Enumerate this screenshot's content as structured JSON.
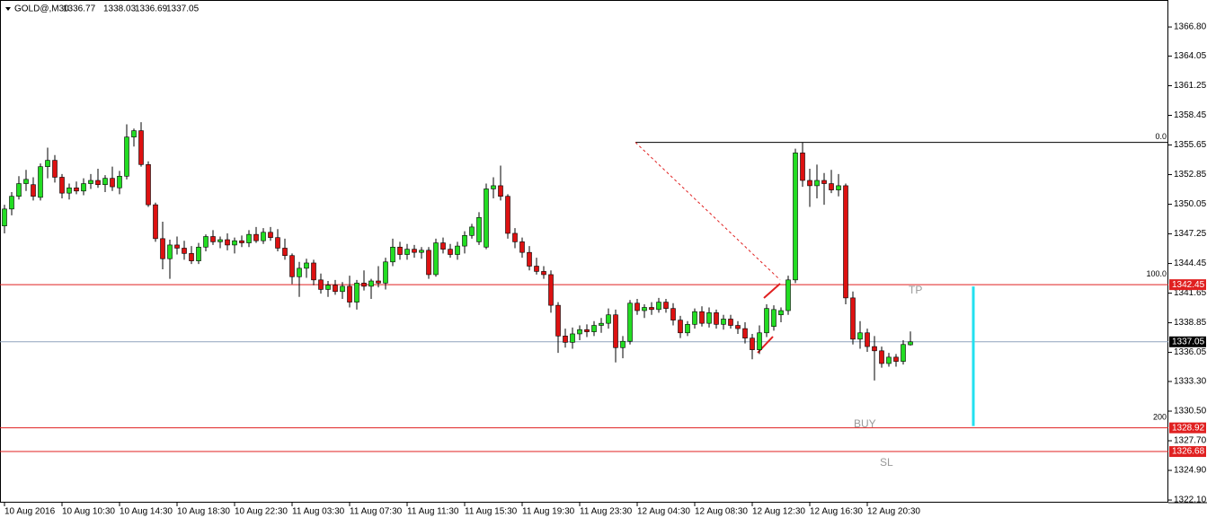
{
  "chart_data": {
    "type": "candlestick",
    "title": "GOLD@,M30",
    "categories": [
      "10 Aug 2016",
      null,
      null,
      null,
      null,
      null,
      null,
      null,
      "10 Aug 10:30",
      null,
      null,
      null,
      null,
      null,
      null,
      null,
      "10 Aug 14:30",
      null,
      null,
      null,
      null,
      null,
      null,
      null,
      "10 Aug 18:30",
      null,
      null,
      null,
      null,
      null,
      null,
      null,
      "10 Aug 22:30",
      null,
      null,
      null,
      null,
      null,
      null,
      null,
      "11 Aug 03:30",
      null,
      null,
      null,
      null,
      null,
      null,
      null,
      "11 Aug 07:30",
      null,
      null,
      null,
      null,
      null,
      null,
      null,
      "11 Aug 11:30",
      null,
      null,
      null,
      null,
      null,
      null,
      null,
      "11 Aug 15:30",
      null,
      null,
      null,
      null,
      null,
      null,
      null,
      "11 Aug 19:30",
      null,
      null,
      null,
      null,
      null,
      null,
      null,
      "11 Aug 23:30",
      null,
      null,
      null,
      null,
      null,
      null,
      null,
      "12 Aug 04:30",
      null,
      null,
      null,
      null,
      null,
      null,
      null,
      "12 Aug 08:30",
      null,
      null,
      null,
      null,
      null,
      null,
      null,
      "12 Aug 12:30",
      null,
      null,
      null,
      null,
      null,
      null,
      null,
      "12 Aug 16:30",
      null,
      null,
      null,
      null,
      null,
      null,
      null,
      "12 Aug 20:30",
      null,
      null,
      null,
      null,
      null,
      null
    ],
    "open": [
      1348.0,
      1349.6,
      1350.8,
      1352.0,
      1351.9,
      1350.7,
      1353.6,
      1354.2,
      1352.6,
      1351.1,
      1351.6,
      1351.3,
      1352.0,
      1352.3,
      1351.9,
      1352.5,
      1351.6,
      1352.7,
      1356.4,
      1357.0,
      1353.8,
      1350.0,
      1346.8,
      1344.9,
      1346.2,
      1345.9,
      1345.4,
      1344.7,
      1346.0,
      1347.0,
      1346.5,
      1346.7,
      1346.2,
      1346.6,
      1346.4,
      1347.2,
      1346.6,
      1347.4,
      1346.9,
      1345.9,
      1345.2,
      1343.2,
      1344.0,
      1344.5,
      1342.9,
      1342.0,
      1342.4,
      1341.8,
      1342.3,
      1340.8,
      1342.6,
      1342.3,
      1342.8,
      1342.6,
      1344.6,
      1346.0,
      1345.3,
      1345.8,
      1345.5,
      1345.7,
      1343.4,
      1346.4,
      1345.8,
      1345.3,
      1346.1,
      1347.1,
      1346.5,
      1346.0,
      1351.5,
      1351.8,
      1350.8,
      1347.3,
      1346.5,
      1345.5,
      1344.2,
      1343.7,
      1343.4,
      1340.5,
      1337.6,
      1337.0,
      1337.8,
      1338.2,
      1338.0,
      1338.6,
      1338.8,
      1339.6,
      1336.5,
      1337.1,
      1340.7,
      1340.0,
      1340.3,
      1340.1,
      1340.8,
      1340.2,
      1339.1,
      1337.9,
      1338.7,
      1339.9,
      1338.8,
      1339.8,
      1338.7,
      1339.2,
      1338.6,
      1338.3,
      1337.4,
      1336.3,
      1337.9,
      1338.5,
      1339.6,
      1340.0,
      1342.9,
      1354.9,
      1352.3,
      1351.8,
      1352.3,
      1352.0,
      1351.4,
      1351.8,
      1341.2,
      1337.3,
      1337.9,
      1336.6,
      1336.2,
      1335.0,
      1335.6,
      1335.2,
      1336.77
    ],
    "high": [
      1350.0,
      1351.2,
      1352.7,
      1353.3,
      1352.6,
      1353.9,
      1355.4,
      1354.7,
      1352.9,
      1352.0,
      1352.2,
      1352.5,
      1352.9,
      1353.4,
      1352.8,
      1353.6,
      1353.2,
      1357.6,
      1357.2,
      1357.8,
      1354.1,
      1350.2,
      1348.4,
      1346.7,
      1347.0,
      1346.6,
      1346.1,
      1346.4,
      1347.2,
      1347.6,
      1347.0,
      1347.3,
      1346.9,
      1347.1,
      1347.6,
      1347.9,
      1347.8,
      1347.9,
      1347.7,
      1346.8,
      1345.4,
      1344.6,
      1344.9,
      1344.8,
      1343.5,
      1342.8,
      1342.9,
      1342.7,
      1343.3,
      1342.9,
      1343.8,
      1343.0,
      1344.2,
      1345.0,
      1346.8,
      1346.5,
      1346.3,
      1346.2,
      1346.0,
      1346.0,
      1346.8,
      1346.9,
      1346.3,
      1346.5,
      1347.5,
      1348.2,
      1349.3,
      1352.0,
      1352.6,
      1353.7,
      1351.0,
      1347.8,
      1346.9,
      1346.1,
      1345.0,
      1344.2,
      1343.8,
      1340.8,
      1338.3,
      1338.4,
      1338.6,
      1338.7,
      1339.0,
      1339.3,
      1340.2,
      1340.1,
      1337.6,
      1341.0,
      1341.1,
      1340.6,
      1340.8,
      1341.2,
      1341.1,
      1340.7,
      1339.5,
      1339.0,
      1340.2,
      1340.4,
      1340.3,
      1340.1,
      1339.6,
      1339.6,
      1339.0,
      1338.9,
      1337.8,
      1338.6,
      1340.6,
      1340.5,
      1340.3,
      1343.3,
      1355.3,
      1355.9,
      1353.4,
      1353.8,
      1353.0,
      1353.3,
      1352.9,
      1352.0,
      1341.8,
      1339.0,
      1338.3,
      1337.6,
      1336.6,
      1336.0,
      1335.9,
      1337.2,
      1338.03
    ],
    "low": [
      1347.3,
      1349.0,
      1350.5,
      1351.3,
      1350.4,
      1350.4,
      1352.5,
      1352.1,
      1350.6,
      1350.5,
      1351.0,
      1350.9,
      1351.5,
      1351.6,
      1351.2,
      1351.3,
      1351.0,
      1352.4,
      1355.5,
      1353.6,
      1349.8,
      1346.5,
      1343.9,
      1343.0,
      1345.3,
      1344.8,
      1344.4,
      1344.4,
      1345.6,
      1346.2,
      1345.9,
      1345.7,
      1345.4,
      1346.0,
      1346.0,
      1346.4,
      1346.3,
      1346.6,
      1345.6,
      1344.8,
      1342.5,
      1341.3,
      1343.1,
      1342.4,
      1341.6,
      1341.3,
      1341.5,
      1341.1,
      1340.3,
      1340.1,
      1341.9,
      1341.1,
      1342.2,
      1342.0,
      1344.2,
      1344.8,
      1344.8,
      1345.0,
      1344.9,
      1343.0,
      1343.2,
      1345.4,
      1345.0,
      1344.8,
      1345.4,
      1346.8,
      1346.2,
      1345.8,
      1350.6,
      1350.4,
      1346.8,
      1345.9,
      1345.0,
      1343.8,
      1343.4,
      1343.0,
      1339.8,
      1336.0,
      1336.5,
      1336.4,
      1337.2,
      1337.5,
      1337.6,
      1337.9,
      1338.3,
      1335.1,
      1335.5,
      1336.8,
      1339.6,
      1339.3,
      1339.6,
      1339.8,
      1339.8,
      1338.6,
      1337.4,
      1337.6,
      1338.3,
      1338.5,
      1338.4,
      1338.3,
      1338.2,
      1338.3,
      1337.8,
      1336.9,
      1335.4,
      1335.9,
      1337.5,
      1338.1,
      1338.9,
      1339.6,
      1342.6,
      1351.7,
      1349.8,
      1350.6,
      1350.0,
      1351.1,
      1350.8,
      1340.6,
      1336.8,
      1336.4,
      1336.1,
      1333.4,
      1334.6,
      1334.7,
      1334.7,
      1334.9,
      1336.69
    ],
    "close": [
      1349.6,
      1350.8,
      1352.0,
      1352.4,
      1350.8,
      1353.6,
      1354.2,
      1352.6,
      1351.1,
      1351.6,
      1351.3,
      1352.0,
      1352.3,
      1351.9,
      1352.5,
      1351.7,
      1352.7,
      1356.4,
      1357.0,
      1353.8,
      1350.0,
      1346.8,
      1344.9,
      1346.2,
      1345.9,
      1345.4,
      1344.7,
      1346.0,
      1347.0,
      1346.5,
      1346.7,
      1346.2,
      1346.6,
      1346.4,
      1347.2,
      1346.6,
      1347.4,
      1346.9,
      1345.9,
      1345.2,
      1343.2,
      1344.0,
      1344.5,
      1342.9,
      1342.0,
      1342.4,
      1341.8,
      1342.3,
      1340.8,
      1342.6,
      1342.3,
      1342.8,
      1342.6,
      1344.6,
      1346.0,
      1345.3,
      1345.8,
      1345.5,
      1345.7,
      1343.4,
      1346.4,
      1345.8,
      1345.3,
      1346.1,
      1347.1,
      1347.9,
      1348.8,
      1351.5,
      1351.8,
      1350.8,
      1347.3,
      1346.5,
      1345.5,
      1344.2,
      1343.7,
      1343.4,
      1340.5,
      1337.6,
      1337.0,
      1337.8,
      1338.2,
      1338.0,
      1338.6,
      1338.8,
      1339.6,
      1336.5,
      1337.1,
      1340.7,
      1340.0,
      1340.3,
      1340.1,
      1340.8,
      1340.2,
      1339.1,
      1337.9,
      1338.7,
      1339.9,
      1338.8,
      1339.8,
      1338.7,
      1339.2,
      1338.6,
      1338.3,
      1337.4,
      1336.3,
      1337.9,
      1340.2,
      1340.1,
      1340.0,
      1342.9,
      1354.9,
      1352.3,
      1351.8,
      1352.3,
      1352.0,
      1351.4,
      1351.8,
      1341.2,
      1337.3,
      1337.9,
      1336.6,
      1336.2,
      1335.0,
      1335.6,
      1335.2,
      1336.8,
      1337.05
    ],
    "up_color": "#22dd22",
    "down_color": "#dd1111",
    "ylim": [
      1321.85,
      1369.35
    ],
    "yticks": [
      {
        "value": 1366.8,
        "label": "1366.80"
      },
      {
        "value": 1364.05,
        "label": "1364.05"
      },
      {
        "value": 1361.25,
        "label": "1361.25"
      },
      {
        "value": 1358.45,
        "label": "1358.45"
      },
      {
        "value": 1355.65,
        "label": "1355.65"
      },
      {
        "value": 1352.85,
        "label": "1352.85"
      },
      {
        "value": 1350.05,
        "label": "1350.05"
      },
      {
        "value": 1347.25,
        "label": "1347.25"
      },
      {
        "value": 1344.45,
        "label": "1344.45"
      },
      {
        "value": 1341.65,
        "label": "1341.65"
      },
      {
        "value": 1338.85,
        "label": "1338.85"
      },
      {
        "value": 1336.05,
        "label": "1336.05"
      },
      {
        "value": 1333.3,
        "label": "1333.30"
      },
      {
        "value": 1330.5,
        "label": "1330.50"
      },
      {
        "value": 1327.7,
        "label": "1327.70"
      },
      {
        "value": 1324.9,
        "label": "1324.90"
      },
      {
        "value": 1322.1,
        "label": "1322.10"
      }
    ],
    "levels": [
      {
        "value": 1342.45,
        "color": "#e02020"
      },
      {
        "value": 1337.05,
        "color": "#8fa3bd"
      },
      {
        "value": 1328.92,
        "color": "#e02020"
      },
      {
        "value": 1326.68,
        "color": "#e02020"
      }
    ],
    "fib_levels": [
      {
        "label": "0.0",
        "value": 1355.9
      },
      {
        "label": "100.0",
        "value": 1342.9
      },
      {
        "label": "200",
        "value": 1329.4
      }
    ],
    "annotations": [
      "TP",
      "BUY",
      "SL"
    ]
  }
}
